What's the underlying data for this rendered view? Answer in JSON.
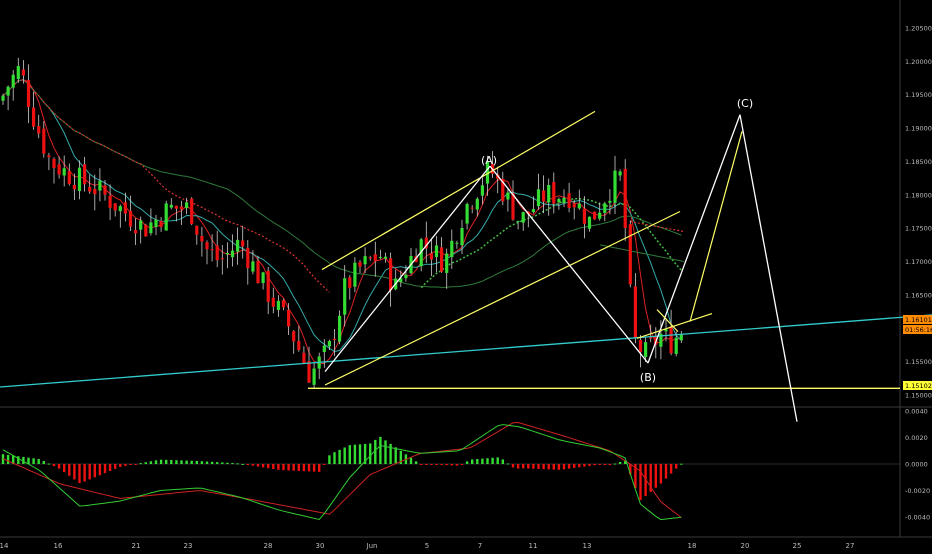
{
  "chart_data": [
    {
      "type": "candlestick",
      "instrument_note": "",
      "ylim": [
        1.145,
        1.207
      ],
      "y_ticks": [
        "1.20500",
        "1.20000",
        "1.19500",
        "1.19000",
        "1.18500",
        "1.18000",
        "1.17500",
        "1.17000",
        "1.16500",
        "1.15500",
        "1.15000"
      ],
      "x_ticks": [
        "14",
        "16",
        "21",
        "23",
        "28",
        "30",
        "Jun",
        "5",
        "7",
        "11",
        "13",
        "18",
        "20",
        "25",
        "27"
      ],
      "price_badges": [
        {
          "label": "1.16101",
          "value": 1.161,
          "color": "#ff8c00"
        },
        {
          "label": "01:56:16",
          "value": 1.1598,
          "color": "#ff8c00"
        },
        {
          "label": "1.15102",
          "value": 1.151,
          "color": "#ffff33"
        }
      ],
      "wave_labels": [
        {
          "label": "(A)",
          "at": "peak",
          "price": 1.1843
        },
        {
          "label": "(B)",
          "at": "trough",
          "price": 1.1548
        },
        {
          "label": "(C)",
          "at": "projection",
          "price": 1.192
        }
      ],
      "support_level": 1.151,
      "colors": {
        "bull": "#33dd33",
        "bear": "#ee1111",
        "cyan_trend": "#33cccc",
        "channel": "#ffff66",
        "wave": "#ffffff",
        "ma_fast": "#dd2222",
        "ma_mid": "#33aaaa",
        "ma_slow": "#2f7a3a",
        "ma_dotted_red": "#dd3333",
        "ma_dotted_green": "#44bb44"
      }
    },
    {
      "type": "macd",
      "ylim": [
        -0.0055,
        0.0043
      ],
      "y_ticks": [
        "0.0040",
        "0.0020",
        "0.0000",
        "-0.0020",
        "-0.0040"
      ],
      "colors": {
        "hist_pos": "#33dd33",
        "hist_neg": "#ee1111",
        "macd_line": "#33cc33",
        "signal_line": "#cc2222"
      }
    }
  ]
}
